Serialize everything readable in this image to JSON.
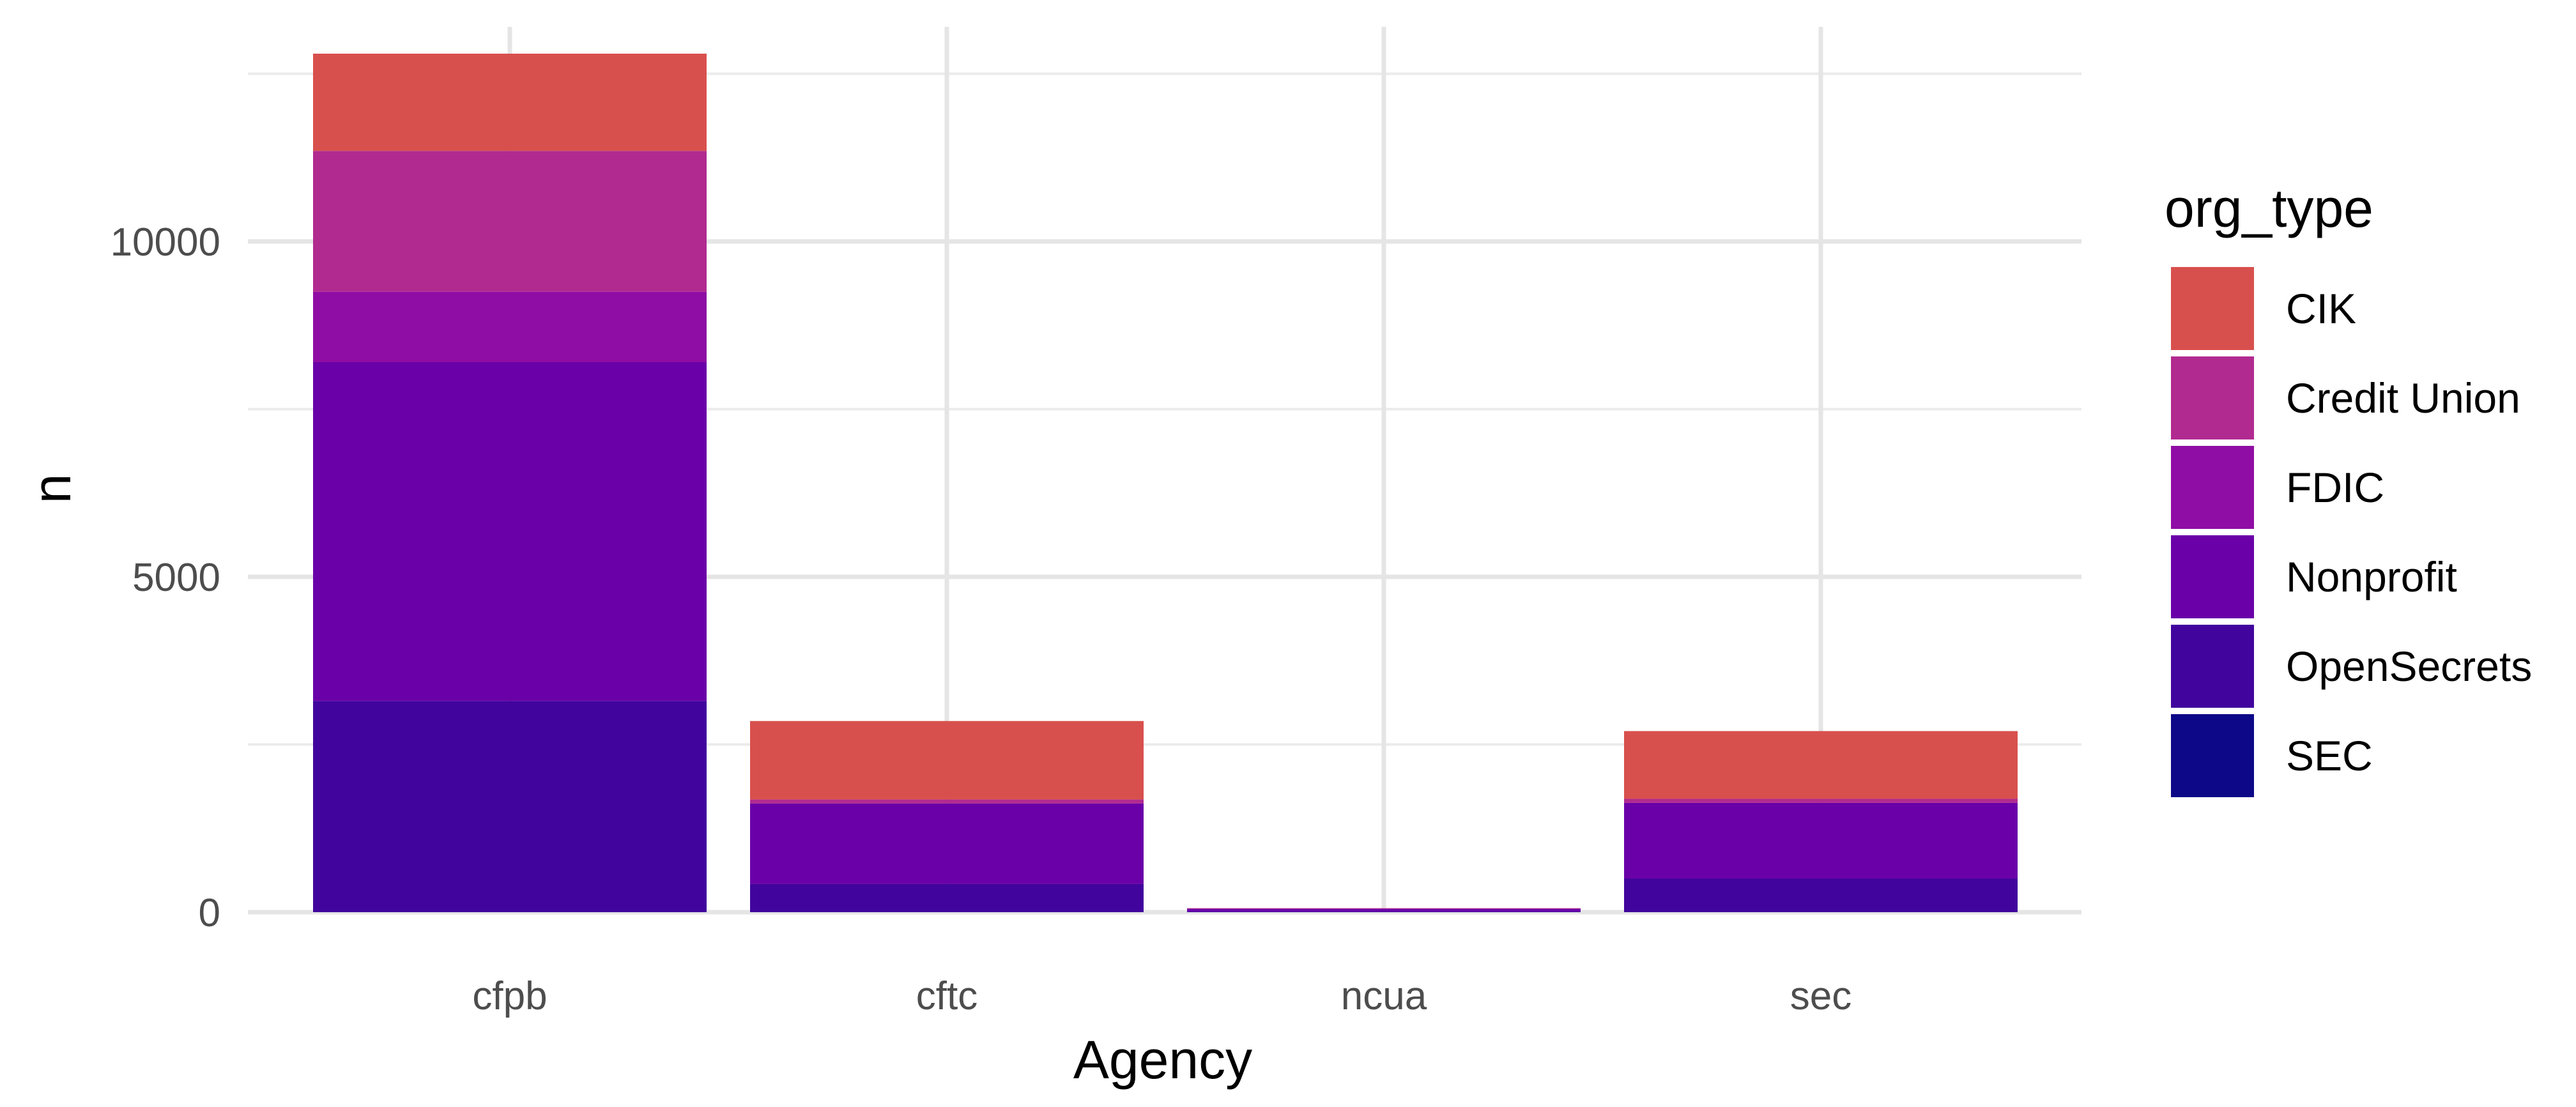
{
  "chart_data": {
    "type": "bar",
    "stacked": true,
    "title": "",
    "xlabel": "Agency",
    "ylabel": "n",
    "categories": [
      "cfpb",
      "cftc",
      "ncua",
      "sec"
    ],
    "ylim": [
      0,
      13200
    ],
    "yticks": [
      0,
      5000,
      10000
    ],
    "grid": true,
    "legend": {
      "title": "org_type",
      "position": "right"
    },
    "series": [
      {
        "name": "SEC",
        "color": "#0d0887",
        "values": [
          0,
          0,
          0,
          0
        ]
      },
      {
        "name": "OpenSecrets",
        "color": "#41049d",
        "values": [
          3150,
          420,
          10,
          500
        ]
      },
      {
        "name": "Nonprofit",
        "color": "#6a00a8",
        "values": [
          5050,
          1200,
          40,
          1130
        ]
      },
      {
        "name": "FDIC",
        "color": "#8f0da4",
        "values": [
          1050,
          0,
          0,
          0
        ]
      },
      {
        "name": "Credit Union",
        "color": "#b12a90",
        "values": [
          2100,
          60,
          10,
          60
        ]
      },
      {
        "name": "CIK",
        "color": "#d8504d",
        "values": [
          1450,
          1170,
          0,
          1010
        ]
      }
    ]
  }
}
